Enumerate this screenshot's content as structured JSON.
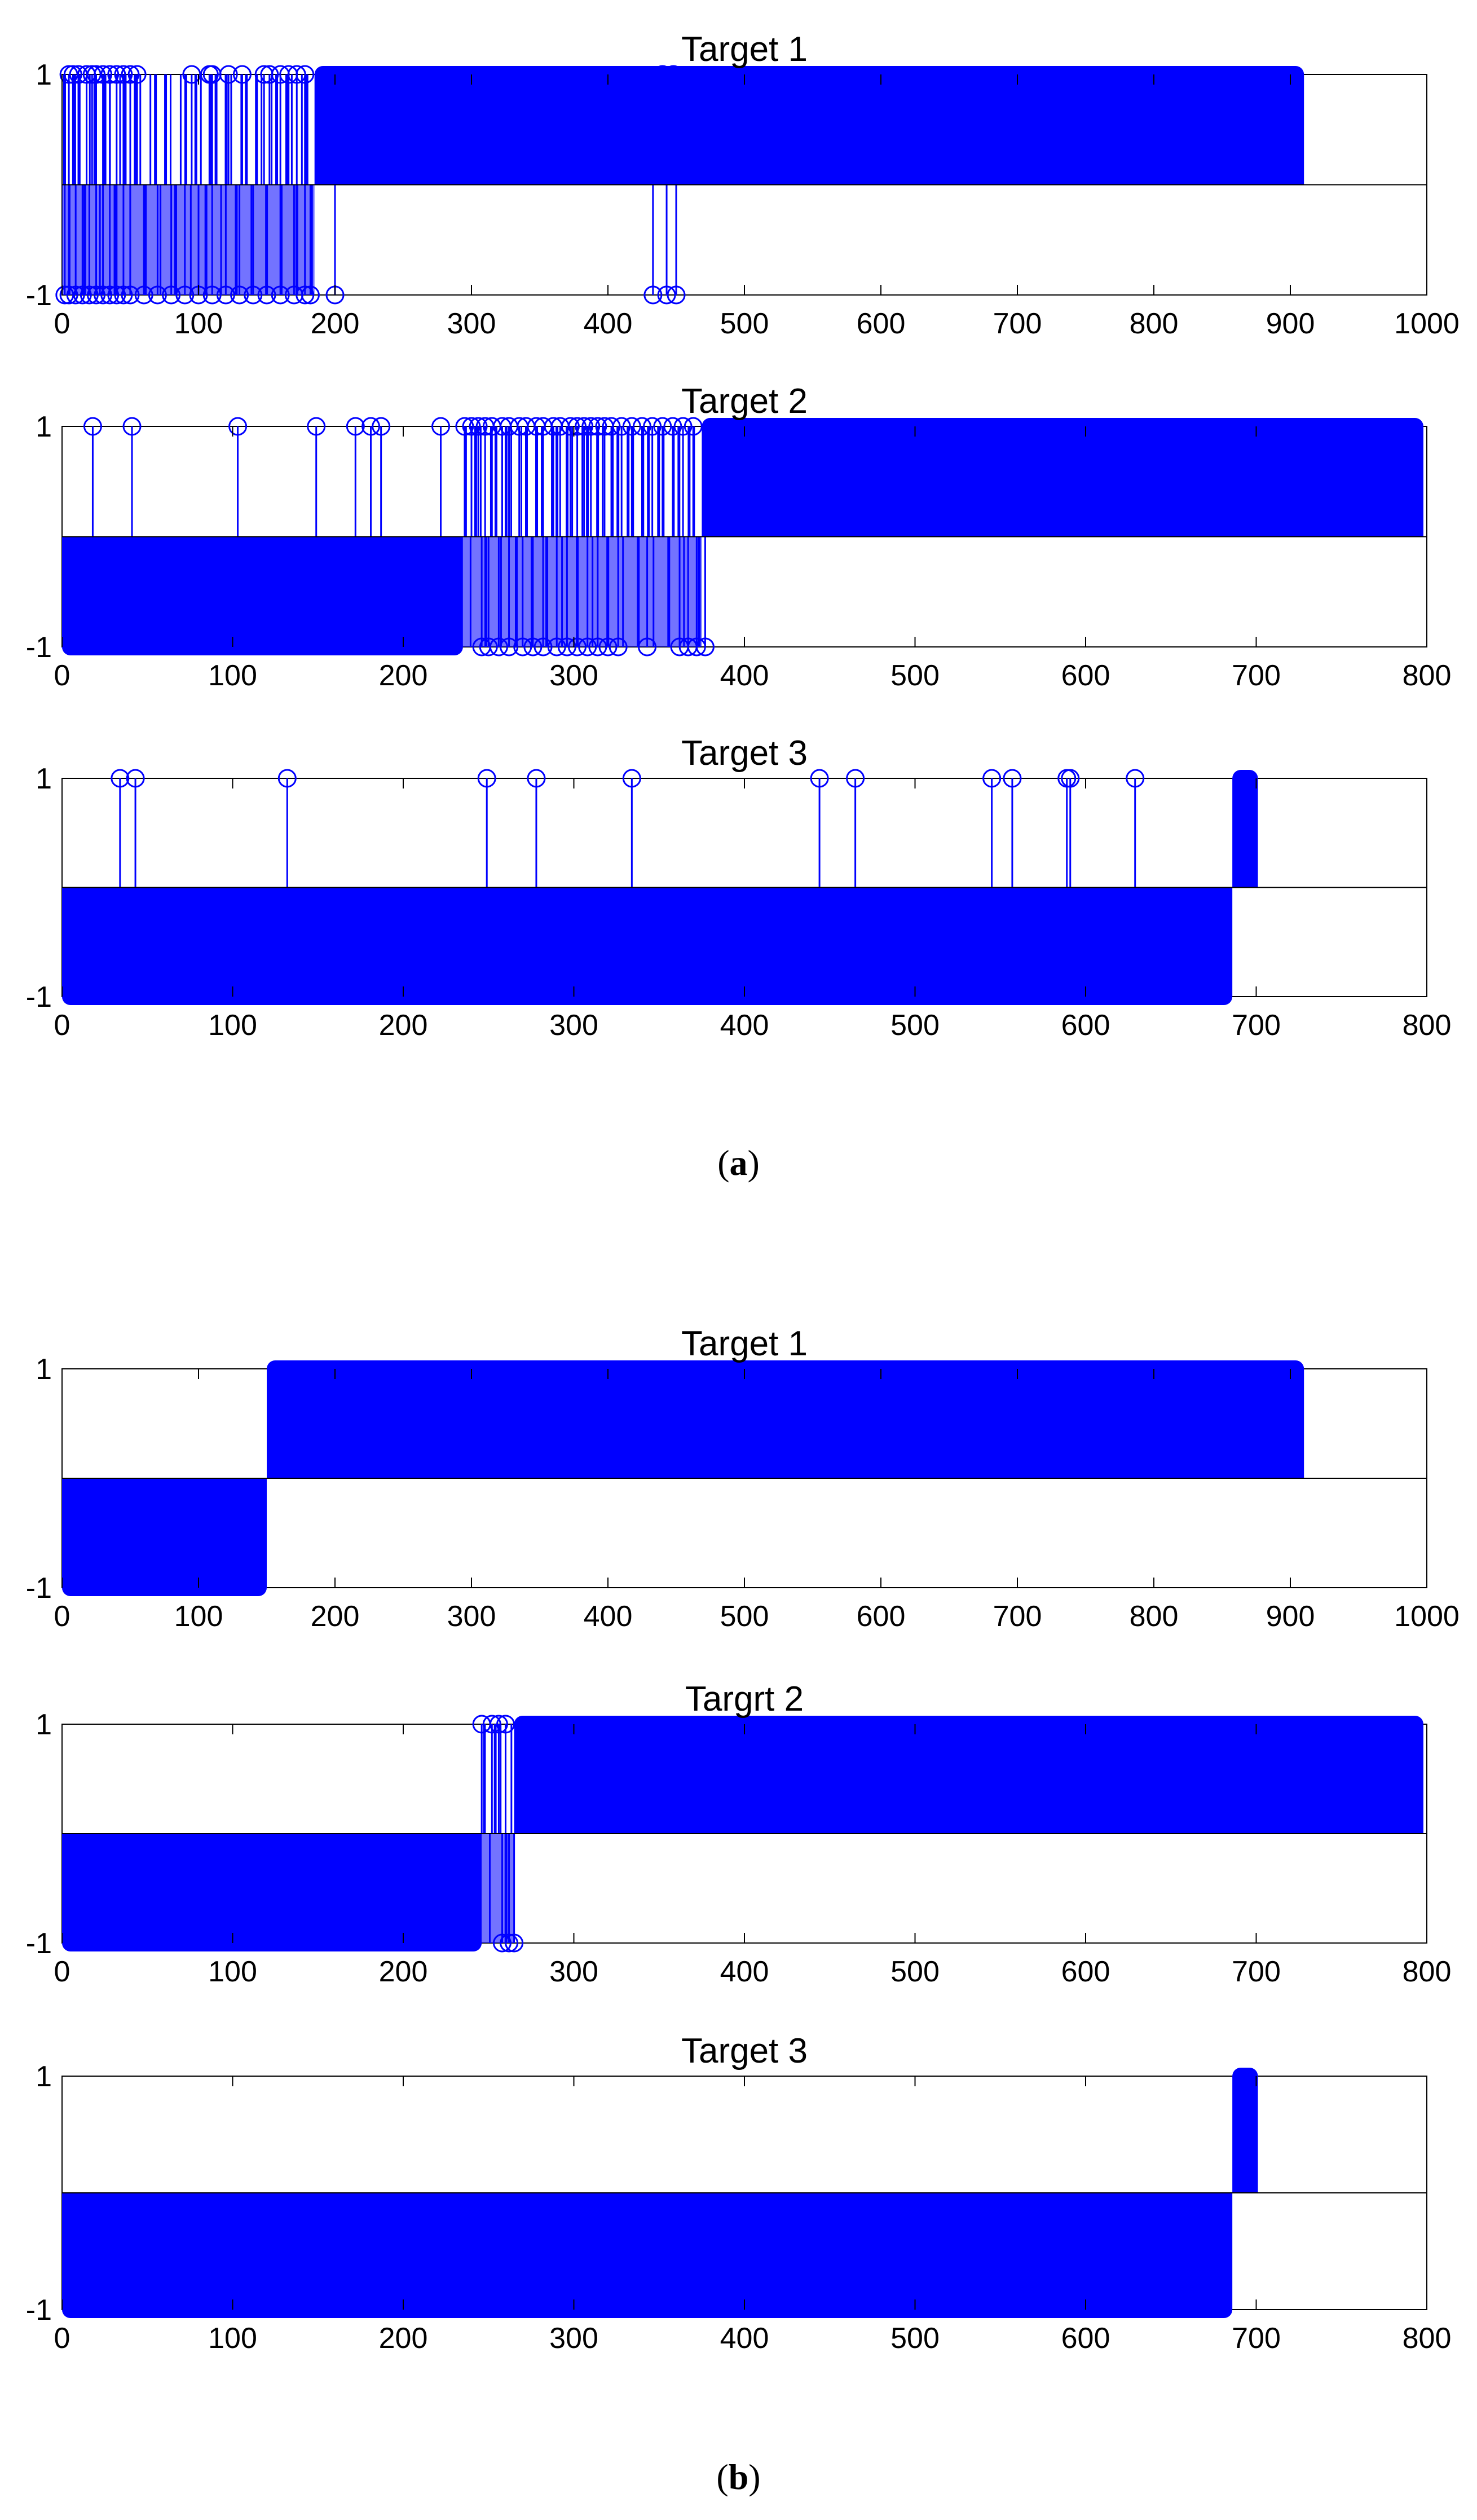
{
  "panels": [
    {
      "caption_open": "(",
      "caption_letter": "a",
      "caption_close": ")"
    },
    {
      "caption_open": "(",
      "caption_letter": "b",
      "caption_close": ")"
    }
  ],
  "colors": {
    "stem": "#0000ff",
    "axis": "#000000",
    "background": "#ffffff"
  },
  "chart_data": [
    {
      "type": "stem",
      "panel": "a",
      "title": "Target 1",
      "xlim": [
        0,
        1000
      ],
      "ylim": [
        -1,
        1
      ],
      "xticks": [
        0,
        100,
        200,
        300,
        400,
        500,
        600,
        700,
        800,
        900,
        1000
      ],
      "yticks": [
        -1,
        1
      ],
      "marker": "circle",
      "runs": [
        {
          "from": 0,
          "to": 185,
          "value": "mixed"
        },
        {
          "from": 185,
          "to": 910,
          "value": 1
        }
      ],
      "up_points": [
        5,
        8,
        12,
        18,
        22,
        25,
        30,
        35,
        40,
        45,
        50,
        55,
        95,
        108,
        110,
        122,
        132,
        148,
        152,
        160,
        166,
        172,
        178
      ],
      "down_points": [
        2,
        5,
        10,
        15,
        20,
        25,
        30,
        35,
        40,
        45,
        50,
        60,
        70,
        80,
        90,
        100,
        110,
        120,
        130,
        140,
        150,
        160,
        170,
        178,
        182,
        200,
        433,
        443,
        450
      ],
      "isolated_up_points": [
        440,
        448
      ]
    },
    {
      "type": "stem",
      "panel": "a",
      "title": "Target 2",
      "xlim": [
        0,
        800
      ],
      "ylim": [
        -1,
        1
      ],
      "xticks": [
        0,
        100,
        200,
        300,
        400,
        500,
        600,
        700,
        800
      ],
      "yticks": [
        -1,
        1
      ],
      "marker": "circle",
      "runs": [
        {
          "from": 0,
          "to": 235,
          "value": -1
        },
        {
          "from": 235,
          "to": 375,
          "value": "mixed"
        },
        {
          "from": 375,
          "to": 798,
          "value": 1
        }
      ],
      "up_points": [
        18,
        41,
        103,
        149,
        172,
        181,
        187,
        222,
        236,
        240,
        244,
        248,
        252,
        258,
        262,
        268,
        272,
        278,
        282,
        288,
        292,
        298,
        302,
        306,
        310,
        314,
        318,
        322,
        328,
        334,
        340,
        346,
        352,
        358,
        364,
        370
      ],
      "down_points": [
        246,
        250,
        256,
        262,
        270,
        276,
        282,
        290,
        296,
        302,
        308,
        314,
        320,
        326,
        343,
        362,
        367,
        372,
        377
      ]
    },
    {
      "type": "stem",
      "panel": "a",
      "title": "Target 3",
      "xlim": [
        0,
        800
      ],
      "ylim": [
        -1,
        1
      ],
      "xticks": [
        0,
        100,
        200,
        300,
        400,
        500,
        600,
        700,
        800
      ],
      "yticks": [
        -1,
        1
      ],
      "marker": "circle",
      "runs": [
        {
          "from": 0,
          "to": 686,
          "value": -1
        },
        {
          "from": 686,
          "to": 701,
          "value": 1
        }
      ],
      "up_points": [
        34,
        43,
        132,
        249,
        278,
        334,
        444,
        465,
        545,
        557,
        589,
        591,
        629
      ]
    },
    {
      "type": "stem",
      "panel": "b",
      "title": "Target 1",
      "xlim": [
        0,
        1000
      ],
      "ylim": [
        -1,
        1
      ],
      "xticks": [
        0,
        100,
        200,
        300,
        400,
        500,
        600,
        700,
        800,
        900,
        1000
      ],
      "yticks": [
        -1,
        1
      ],
      "marker": "circle",
      "runs": [
        {
          "from": 0,
          "to": 150,
          "value": -1
        },
        {
          "from": 150,
          "to": 910,
          "value": 1
        }
      ]
    },
    {
      "type": "stem",
      "panel": "b",
      "title": "Targrt 2",
      "xlim": [
        0,
        800
      ],
      "ylim": [
        -1,
        1
      ],
      "xticks": [
        0,
        100,
        200,
        300,
        400,
        500,
        600,
        700,
        800
      ],
      "yticks": [
        -1,
        1
      ],
      "marker": "circle",
      "runs": [
        {
          "from": 0,
          "to": 246,
          "value": -1
        },
        {
          "from": 246,
          "to": 265,
          "value": "mixed"
        },
        {
          "from": 265,
          "to": 798,
          "value": 1
        }
      ],
      "up_points": [
        246,
        252,
        256,
        260
      ],
      "down_points": [
        258,
        262,
        265
      ]
    },
    {
      "type": "stem",
      "panel": "b",
      "title": "Target 3",
      "xlim": [
        0,
        800
      ],
      "ylim": [
        -1,
        1
      ],
      "xticks": [
        0,
        100,
        200,
        300,
        400,
        500,
        600,
        700,
        800
      ],
      "yticks": [
        -1,
        1
      ],
      "marker": "circle",
      "runs": [
        {
          "from": 0,
          "to": 686,
          "value": -1
        },
        {
          "from": 686,
          "to": 701,
          "value": 1
        }
      ]
    }
  ]
}
